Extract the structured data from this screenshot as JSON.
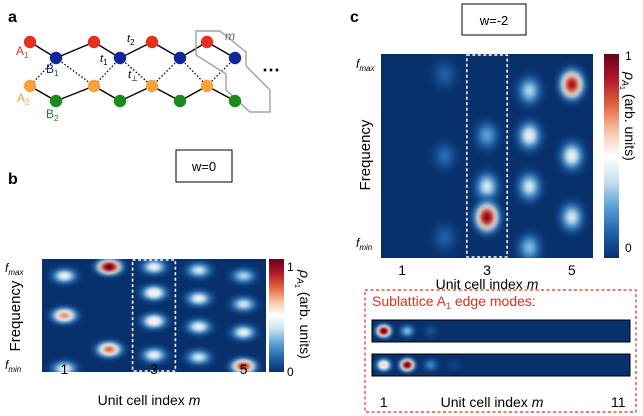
{
  "panels": {
    "a": {
      "label": "a",
      "site_labels": {
        "A1": "A",
        "A1_sub": "1",
        "B1": "B",
        "B1_sub": "1",
        "A2": "A",
        "A2_sub": "2",
        "B2": "B",
        "B2_sub": "2"
      },
      "hoppings": {
        "t1": "t",
        "t1_sub": "1",
        "t2": "t",
        "t2_sub": "2",
        "tperp": "t",
        "tperp_sub": "⊥"
      },
      "unit_cell_label": "m",
      "ellipsis": "⋯",
      "colors": {
        "A1": "#e8301f",
        "B1": "#10279a",
        "A2": "#f5a33a",
        "B2": "#1a8a1a",
        "box": "#a0a0a0"
      }
    },
    "b": {
      "label": "b",
      "winding_label": "w=0",
      "y_label": "Frequency",
      "y_top": "f",
      "y_top_sub": "max",
      "y_bottom": "f",
      "y_bottom_sub": "min",
      "x_label_text": "Unit cell index ",
      "x_label_var": "m",
      "x_ticks": [
        "1",
        "3",
        "5"
      ],
      "colorbar_label": "ρ",
      "colorbar_label_sub": "A",
      "colorbar_label_subsub": "1",
      "colorbar_units": " (arb. units)",
      "colorbar_ticks": [
        "1",
        "0"
      ]
    },
    "c": {
      "label": "c",
      "winding_label": "w=-2",
      "y_label": "Frequency",
      "y_top": "f",
      "y_top_sub": "max",
      "y_bottom": "f",
      "y_bottom_sub": "min",
      "x_label_text": "Unit cell index ",
      "x_label_var": "m",
      "x_ticks": [
        "1",
        "3",
        "5"
      ],
      "colorbar_label": "ρ",
      "colorbar_label_sub": "A",
      "colorbar_label_subsub": "1",
      "colorbar_units": " (arb. units)",
      "colorbar_ticks": [
        "1",
        "0"
      ]
    },
    "edge_modes": {
      "title": "Sublattice A",
      "title_sub": "1",
      "title_suffix": " edge modes:",
      "x_label_text": "Unit cell index ",
      "x_label_var": "m",
      "x_ticks": [
        "1",
        "11"
      ],
      "accent": "#e03020"
    }
  },
  "colormap": [
    "#08306b",
    "#1f62ab",
    "#5aa0d2",
    "#c7e0ef",
    "#ffffff",
    "#f7c2a6",
    "#e0643f",
    "#b2182b",
    "#67001f"
  ],
  "chart_data": [
    {
      "type": "heatmap",
      "panel": "b",
      "title": "w=0",
      "xlabel": "Unit cell index m",
      "ylabel": "Frequency",
      "x": [
        1,
        2,
        3,
        4,
        5
      ],
      "ylim": [
        "f_min",
        "f_max"
      ],
      "colorbar": "ρA1 (arb. units)",
      "crange": [
        0,
        1
      ],
      "highlighted_column": 3,
      "peaks": [
        {
          "m": 1,
          "f": 0.85,
          "v": 0.45
        },
        {
          "m": 1,
          "f": 0.5,
          "v": 0.7
        },
        {
          "m": 1,
          "f": 0.03,
          "v": 0.45
        },
        {
          "m": 2,
          "f": 0.93,
          "v": 1.0
        },
        {
          "m": 2,
          "f": 0.2,
          "v": 0.75
        },
        {
          "m": 3,
          "f": 0.93,
          "v": 0.45
        },
        {
          "m": 3,
          "f": 0.7,
          "v": 0.55
        },
        {
          "m": 3,
          "f": 0.45,
          "v": 0.55
        },
        {
          "m": 3,
          "f": 0.15,
          "v": 0.45
        },
        {
          "m": 4,
          "f": 0.9,
          "v": 0.4
        },
        {
          "m": 4,
          "f": 0.65,
          "v": 0.45
        },
        {
          "m": 4,
          "f": 0.4,
          "v": 0.45
        },
        {
          "m": 4,
          "f": 0.13,
          "v": 0.4
        },
        {
          "m": 5,
          "f": 0.85,
          "v": 0.35
        },
        {
          "m": 5,
          "f": 0.6,
          "v": 0.4
        },
        {
          "m": 5,
          "f": 0.35,
          "v": 0.45
        },
        {
          "m": 5,
          "f": 0.05,
          "v": 0.85
        }
      ]
    },
    {
      "type": "heatmap",
      "panel": "c",
      "title": "w=-2",
      "xlabel": "Unit cell index m",
      "ylabel": "Frequency",
      "x": [
        1,
        2,
        3,
        4,
        5
      ],
      "ylim": [
        "f_min",
        "f_max"
      ],
      "colorbar": "ρA1 (arb. units)",
      "crange": [
        0,
        1
      ],
      "highlighted_column": 3,
      "peaks": [
        {
          "m": 2,
          "f": 0.9,
          "v": 0.12
        },
        {
          "m": 2,
          "f": 0.5,
          "v": 0.15
        },
        {
          "m": 2,
          "f": 0.1,
          "v": 0.12
        },
        {
          "m": 3,
          "f": 0.6,
          "v": 0.25
        },
        {
          "m": 3,
          "f": 0.35,
          "v": 0.4
        },
        {
          "m": 3,
          "f": 0.2,
          "v": 0.95
        },
        {
          "m": 4,
          "f": 0.82,
          "v": 0.35
        },
        {
          "m": 4,
          "f": 0.6,
          "v": 0.45
        },
        {
          "m": 4,
          "f": 0.35,
          "v": 0.4
        },
        {
          "m": 4,
          "f": 0.05,
          "v": 0.3
        },
        {
          "m": 5,
          "f": 0.85,
          "v": 0.9
        },
        {
          "m": 5,
          "f": 0.5,
          "v": 0.45
        },
        {
          "m": 5,
          "f": 0.2,
          "v": 0.4
        }
      ]
    },
    {
      "type": "heatmap",
      "panel": "edge_modes",
      "title": "Sublattice A1 edge modes:",
      "xlabel": "Unit cell index m",
      "x_range": [
        1,
        11
      ],
      "rows": [
        {
          "peaks": [
            {
              "m": 1,
              "v": 1.0
            },
            {
              "m": 2,
              "v": 0.3
            },
            {
              "m": 3,
              "v": 0.08
            }
          ]
        },
        {
          "peaks": [
            {
              "m": 1,
              "v": 0.6
            },
            {
              "m": 2,
              "v": 1.0
            },
            {
              "m": 3,
              "v": 0.2
            },
            {
              "m": 4,
              "v": 0.05
            }
          ]
        }
      ]
    }
  ]
}
